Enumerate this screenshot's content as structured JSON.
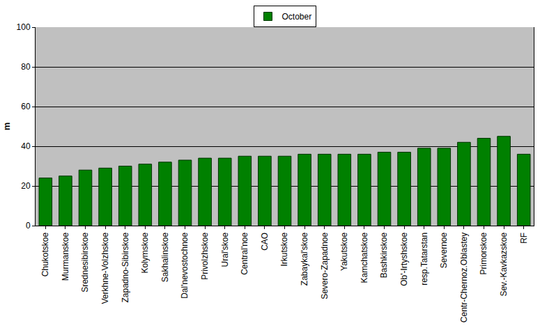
{
  "chart_data": {
    "type": "bar",
    "y_label": "m",
    "categories": [
      "Chukotskoe",
      "Murmanskoe",
      "Srednesibirskoe",
      "Verkhne-Volzhskoe",
      "Zapadno-Sibirskoe",
      "Kolymskoe",
      "Sakhalinskoe",
      "Dal'nevostochnoe",
      "Privolzhskoe",
      "Ural'skoe",
      "Central'noe",
      "CAO",
      "Irkutskoe",
      "Zabaykal'skoe",
      "Severo-Zapadnoe",
      "Yakutskoe",
      "Kamchatskoe",
      "Bashkirskoe",
      "Ob'-Irtyshskoe",
      "resp.Tatarstan",
      "Severnoe",
      "Centr-Chernoz.Oblastey",
      "Primorskoe",
      "Sev.-Kavkazskoe",
      "RF"
    ],
    "series": [
      {
        "name": "October",
        "color": "#008000",
        "values": [
          24,
          25,
          28,
          29,
          30,
          31,
          32,
          33,
          34,
          34,
          35,
          35,
          35,
          36,
          36,
          36,
          36,
          37,
          37,
          39,
          39,
          42,
          44,
          45,
          36
        ]
      }
    ],
    "ylim": [
      0,
      100
    ],
    "yticks": [
      0,
      20,
      40,
      60,
      80,
      100
    ],
    "grid": true,
    "legend": "top"
  }
}
